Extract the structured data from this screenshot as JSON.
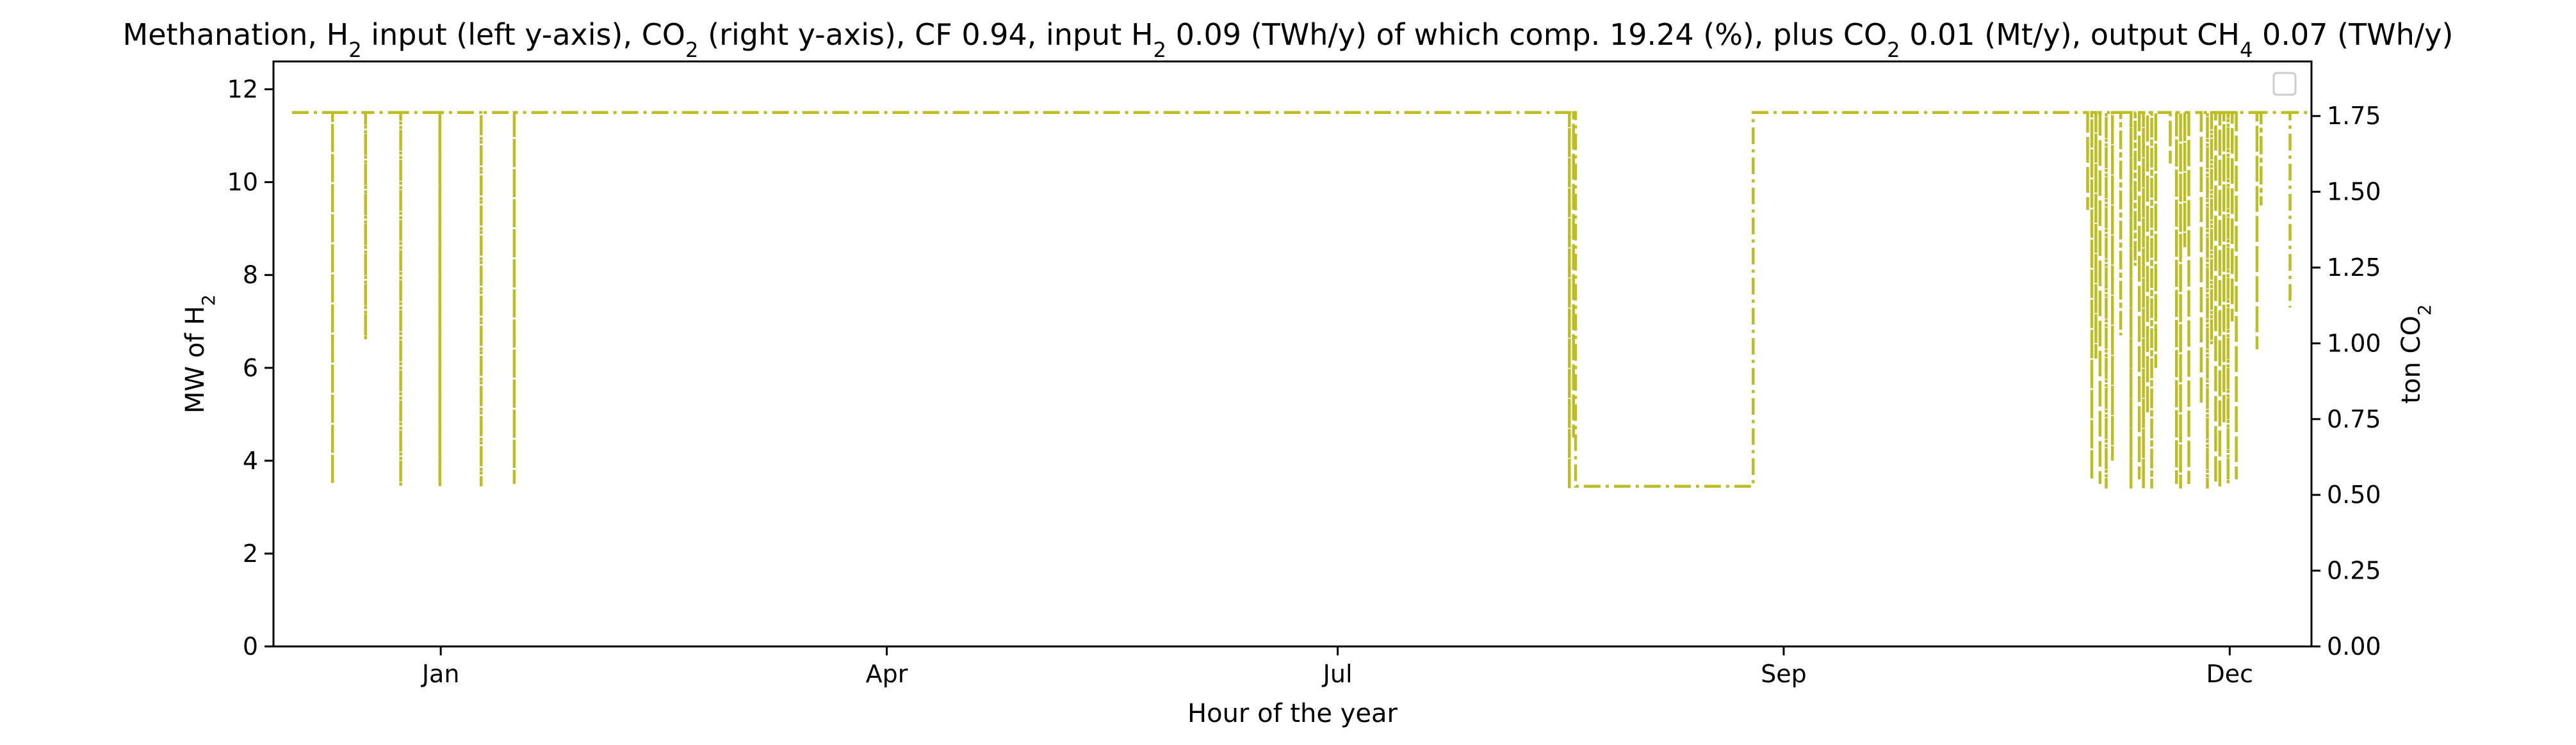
{
  "chart_data": {
    "type": "line",
    "title_parts": [
      {
        "t": "Methanation, H",
        "sub": false
      },
      {
        "t": "2",
        "sub": true
      },
      {
        "t": " input (left y-axis), CO",
        "sub": false
      },
      {
        "t": "2",
        "sub": true
      },
      {
        "t": " (right y-axis), CF 0.94, input H",
        "sub": false
      },
      {
        "t": "2",
        "sub": true
      },
      {
        "t": " 0.09 (TWh/y) of which comp. 19.24 (%), plus CO",
        "sub": false
      },
      {
        "t": "2",
        "sub": true
      },
      {
        "t": " 0.01 (Mt/y), output CH",
        "sub": false
      },
      {
        "t": "4",
        "sub": true
      },
      {
        "t": " 0.07 (TWh/y)",
        "sub": false
      }
    ],
    "xlabel": "Hour of the year",
    "ylabel_left_parts": [
      {
        "t": "MW of H",
        "sub": false
      },
      {
        "t": "2",
        "sub": true
      }
    ],
    "ylabel_right_parts": [
      {
        "t": "ton CO",
        "sub": false
      },
      {
        "t": "2",
        "sub": true
      }
    ],
    "x_ticks": [
      {
        "label": "Jan",
        "hour": 744
      },
      {
        "label": "Apr",
        "hour": 2904
      },
      {
        "label": "Jul",
        "hour": 5088
      },
      {
        "label": "Sep",
        "hour": 7248
      },
      {
        "label": "Dec",
        "hour": 9408
      }
    ],
    "xlim": [
      -66,
      9804
    ],
    "ylim_left": [
      0,
      12.6
    ],
    "ylim_right": [
      0,
      1.93
    ],
    "yticks_left": [
      "0",
      "2",
      "4",
      "6",
      "8",
      "10",
      "12"
    ],
    "yticks_left_values": [
      0,
      2,
      4,
      6,
      8,
      10,
      12
    ],
    "yticks_right": [
      "0.00",
      "0.25",
      "0.50",
      "0.75",
      "1.00",
      "1.25",
      "1.50",
      "1.75"
    ],
    "yticks_right_values": [
      0,
      0.25,
      0.5,
      0.75,
      1.0,
      1.25,
      1.5,
      1.75
    ],
    "grid": false,
    "legend": "upper right (empty)",
    "series_color": "#bcbd22",
    "series": [
      {
        "axis": "left",
        "style": "dashdot",
        "baseline": 11.5,
        "dips": [
          [
            220,
            3.5
          ],
          [
            380,
            6.6
          ],
          [
            550,
            3.45
          ],
          [
            740,
            3.45
          ],
          [
            940,
            3.45
          ],
          [
            1100,
            3.5
          ],
          [
            6210,
            3.4
          ],
          [
            6230,
            4.5
          ],
          [
            8720,
            9.4
          ],
          [
            8740,
            3.6
          ],
          [
            8760,
            6.2
          ],
          [
            8780,
            3.5
          ],
          [
            8810,
            3.4
          ],
          [
            8840,
            4.0
          ],
          [
            8880,
            6.7
          ],
          [
            8930,
            3.4
          ],
          [
            8950,
            8.2
          ],
          [
            8970,
            3.6
          ],
          [
            8990,
            3.4
          ],
          [
            9010,
            5.0
          ],
          [
            9030,
            3.4
          ],
          [
            9050,
            6.0
          ],
          [
            9120,
            10.4
          ],
          [
            9150,
            3.5
          ],
          [
            9170,
            3.4
          ],
          [
            9190,
            8.6
          ],
          [
            9210,
            3.5
          ],
          [
            9270,
            5.2
          ],
          [
            9300,
            3.4
          ],
          [
            9320,
            6.5
          ],
          [
            9340,
            3.5
          ],
          [
            9360,
            3.4
          ],
          [
            9380,
            4.8
          ],
          [
            9400,
            3.5
          ],
          [
            9420,
            7.0
          ],
          [
            9440,
            3.6
          ],
          [
            9540,
            6.4
          ],
          [
            9560,
            9.5
          ],
          [
            9700,
            7.3
          ]
        ],
        "plateaus": [
          [
            6240,
            7100,
            3.45
          ]
        ]
      }
    ]
  }
}
